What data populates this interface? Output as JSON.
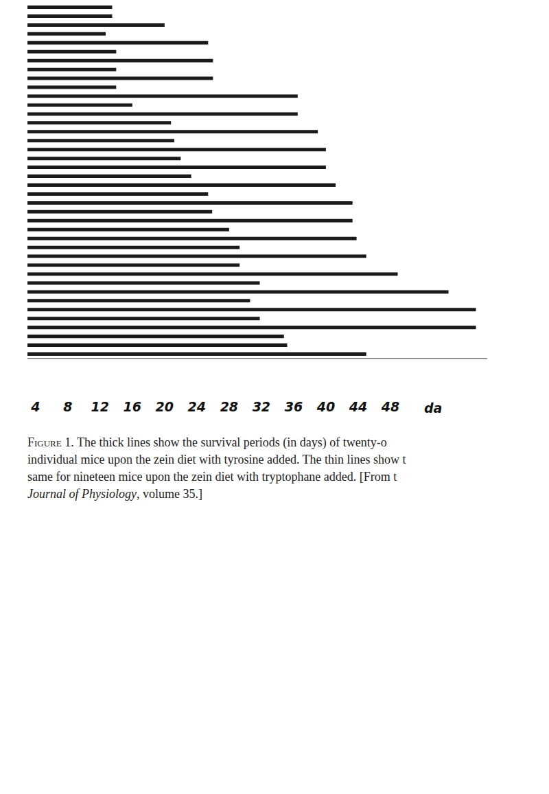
{
  "chart_data": {
    "type": "bar",
    "orientation": "horizontal",
    "xlabel": "da",
    "xlim": [
      3,
      60
    ],
    "xticks": [
      4,
      8,
      12,
      16,
      20,
      24,
      28,
      32,
      36,
      40,
      44,
      48
    ],
    "grid": false,
    "series": [
      {
        "color": "#1a1a1a",
        "line_style": "thick",
        "values": [
          13.5,
          12.7,
          14,
          14,
          14,
          16,
          20.8,
          21.2,
          22,
          23.3,
          25.4,
          25.9,
          28,
          29.3,
          29.3,
          31.8,
          30.6,
          31.8,
          34.8,
          35.2,
          45
        ]
      },
      {
        "color": "#1a1a1a",
        "line_style": "thin",
        "values": [
          13.5,
          20,
          25.4,
          26,
          26,
          36.5,
          36.5,
          39,
          40,
          40,
          41.2,
          43.3,
          43.3,
          43.8,
          45,
          48.9,
          55.2,
          58.6,
          58.6
        ]
      }
    ],
    "figure_label": "Figure 1.",
    "caption_lines": [
      " The thick lines show the survival periods (in days) of twenty-o",
      "individual mice upon the zein diet with tyrosine added. The thin lines show t",
      "same for nineteen mice upon the zein diet with tryptophane added. [From t"
    ],
    "caption_source": "Journal of Physiology",
    "caption_end": ", volume 35.]"
  }
}
